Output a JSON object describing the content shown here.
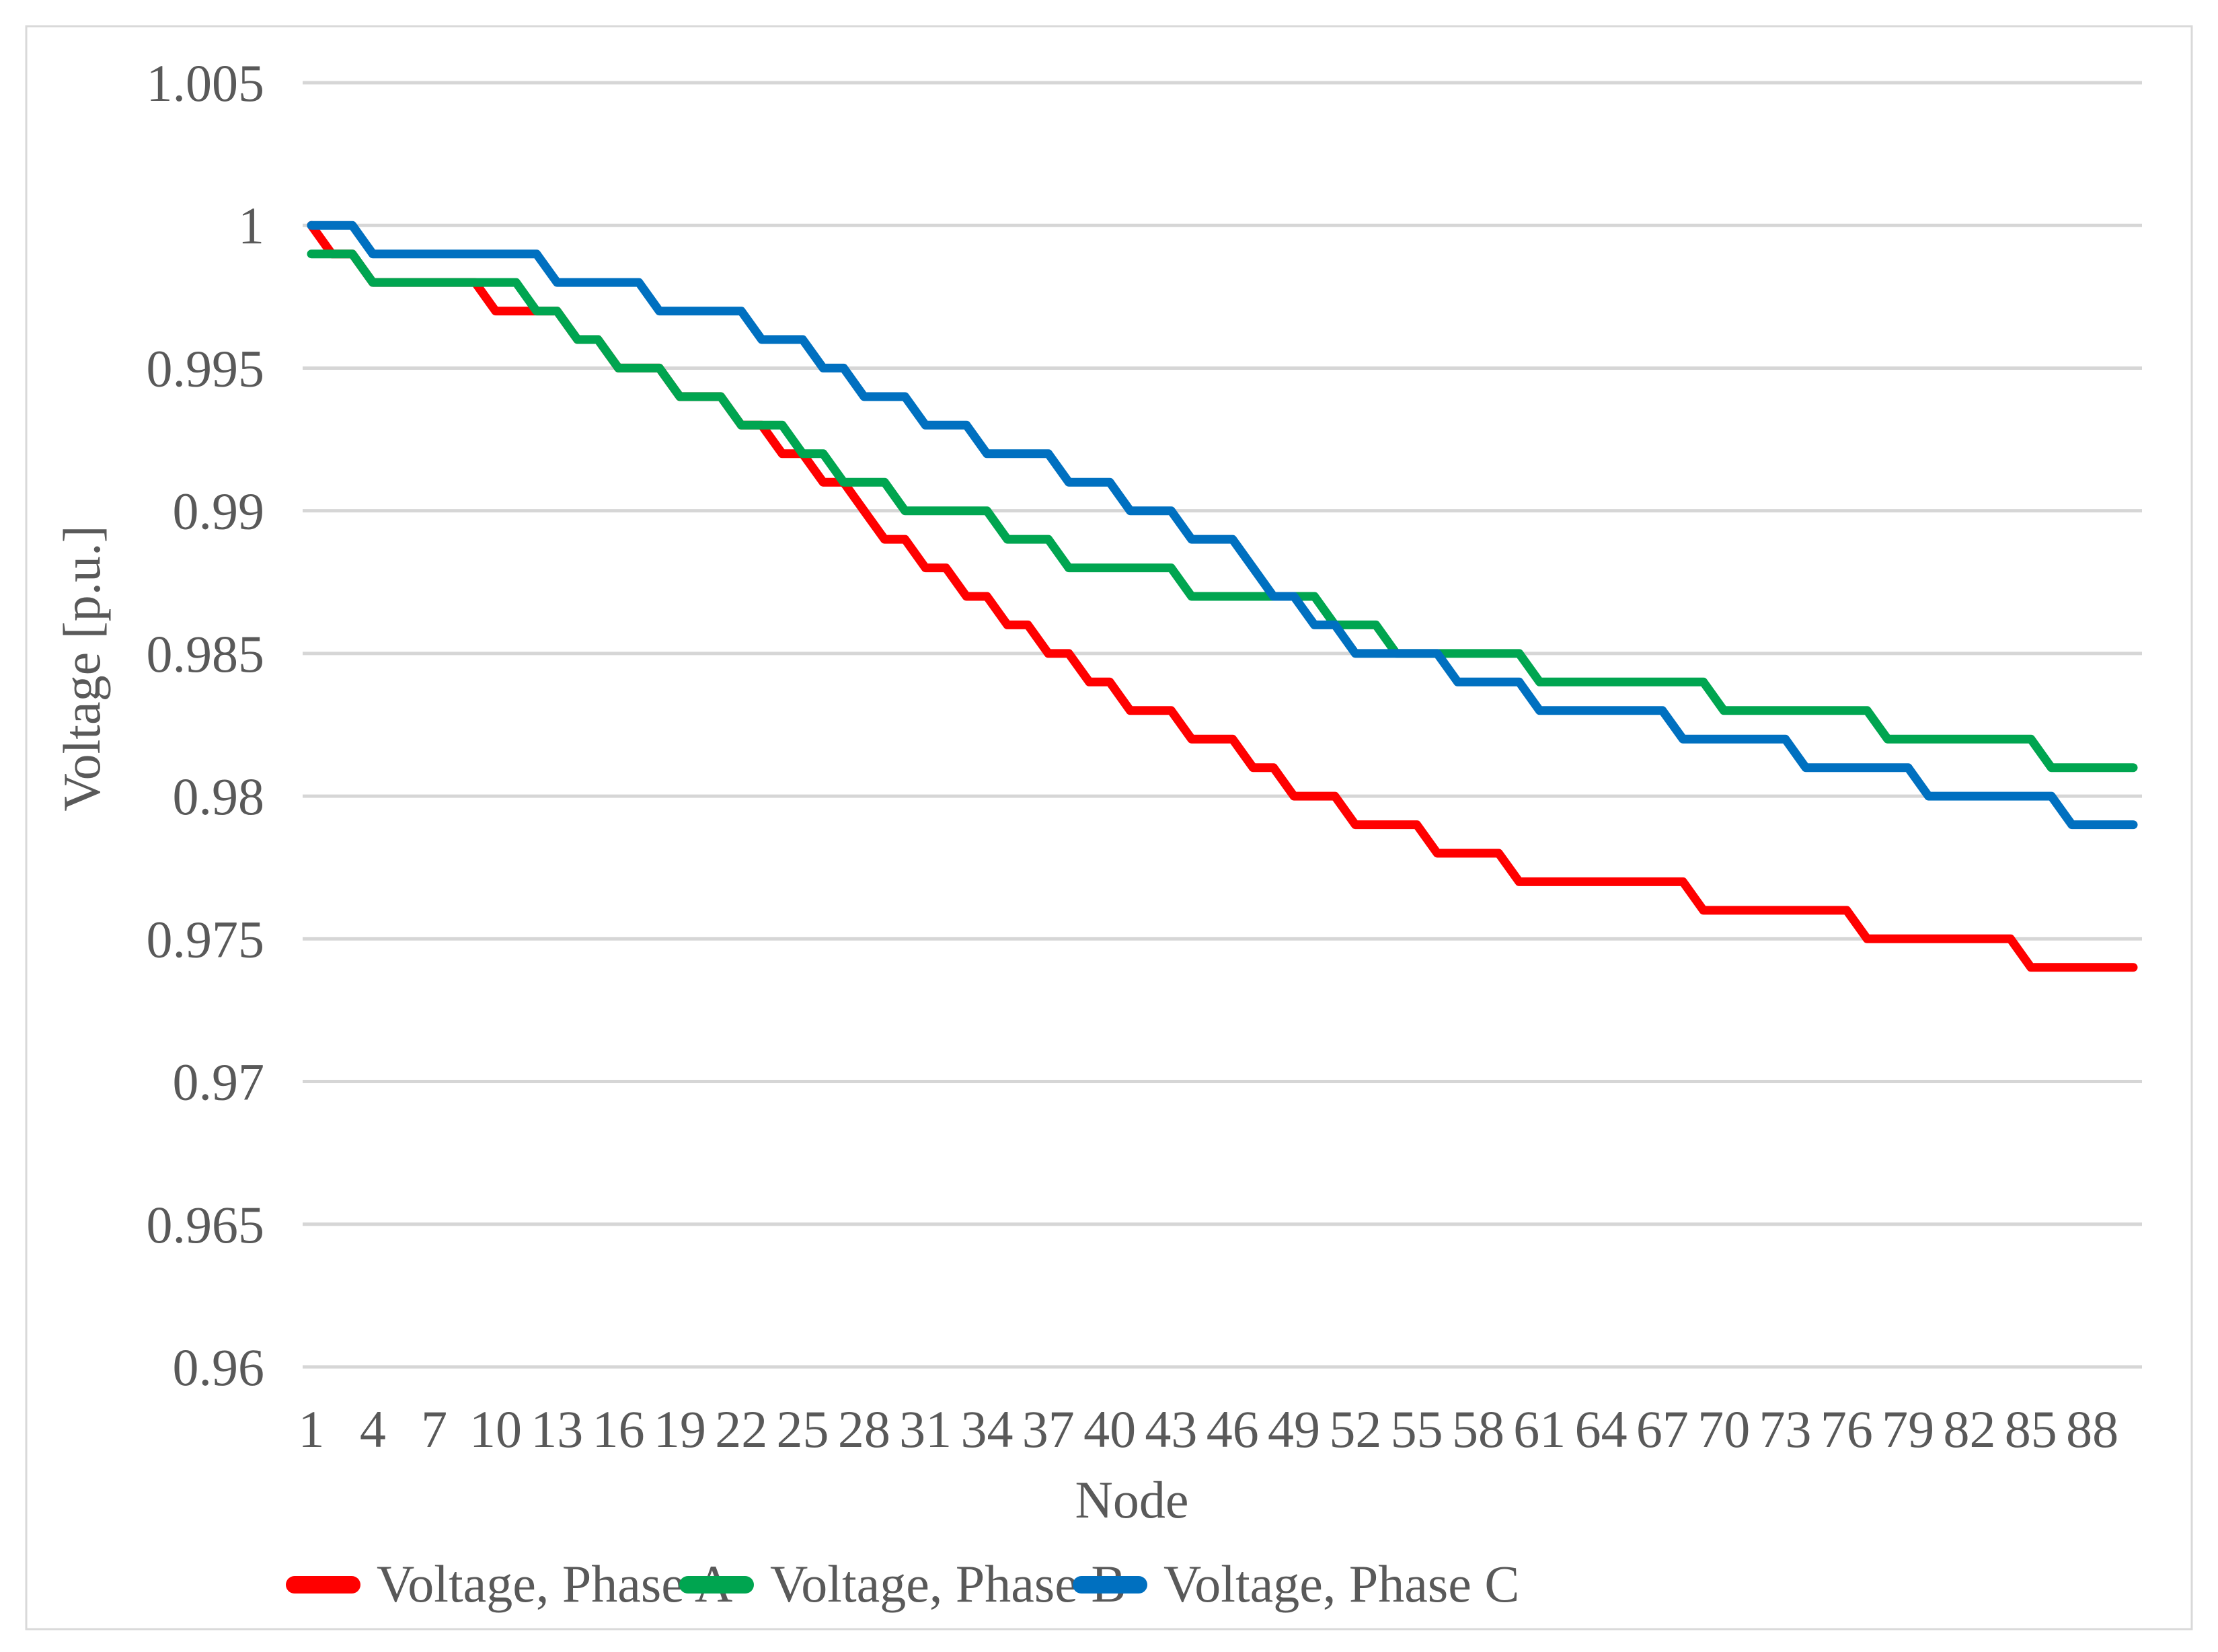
{
  "chart_data": {
    "type": "line",
    "title": "",
    "xlabel": "Node",
    "ylabel": "Voltage [p.u.]",
    "x_start": 1,
    "n_points": 90,
    "x_tick_labels": [
      "1",
      "4",
      "7",
      "10",
      "13",
      "16",
      "19",
      "22",
      "25",
      "28",
      "31",
      "34",
      "37",
      "40",
      "43",
      "46",
      "49",
      "52",
      "55",
      "58",
      "61",
      "64",
      "67",
      "70",
      "73",
      "76",
      "79",
      "82",
      "85",
      "88"
    ],
    "y_tick_labels": [
      "1.005",
      "1",
      "0.995",
      "0.99",
      "0.985",
      "0.98",
      "0.975",
      "0.97",
      "0.965",
      "0.96"
    ],
    "ylim": [
      0.96,
      1.005
    ],
    "y_gridline_step": 0.005,
    "grid": "horizontal",
    "legend_position": "bottom",
    "series": [
      {
        "name": "Voltage, Phase A",
        "color": "#FF0000",
        "values": [
          1,
          0.999,
          0.999,
          0.998,
          0.998,
          0.998,
          0.998,
          0.998,
          0.998,
          0.997,
          0.997,
          0.997,
          0.997,
          0.996,
          0.996,
          0.995,
          0.995,
          0.995,
          0.994,
          0.994,
          0.994,
          0.993,
          0.993,
          0.992,
          0.992,
          0.991,
          0.991,
          0.99,
          0.989,
          0.989,
          0.988,
          0.988,
          0.987,
          0.987,
          0.986,
          0.986,
          0.985,
          0.985,
          0.984,
          0.984,
          0.983,
          0.983,
          0.983,
          0.982,
          0.982,
          0.982,
          0.981,
          0.981,
          0.98,
          0.98,
          0.98,
          0.979,
          0.979,
          0.979,
          0.979,
          0.978,
          0.978,
          0.978,
          0.978,
          0.977,
          0.977,
          0.977,
          0.977,
          0.977,
          0.977,
          0.977,
          0.977,
          0.977,
          0.976,
          0.976,
          0.976,
          0.976,
          0.976,
          0.976,
          0.976,
          0.976,
          0.975,
          0.975,
          0.975,
          0.975,
          0.975,
          0.975,
          0.975,
          0.975,
          0.974,
          0.974,
          0.974,
          0.974,
          0.974,
          0.974
        ]
      },
      {
        "name": "Voltage, Phase B",
        "color": "#00A550",
        "values": [
          0.999,
          0.999,
          0.999,
          0.998,
          0.998,
          0.998,
          0.998,
          0.998,
          0.998,
          0.998,
          0.998,
          0.997,
          0.997,
          0.996,
          0.996,
          0.995,
          0.995,
          0.995,
          0.994,
          0.994,
          0.994,
          0.993,
          0.993,
          0.993,
          0.992,
          0.992,
          0.991,
          0.991,
          0.991,
          0.99,
          0.99,
          0.99,
          0.99,
          0.99,
          0.989,
          0.989,
          0.989,
          0.988,
          0.988,
          0.988,
          0.988,
          0.988,
          0.988,
          0.987,
          0.987,
          0.987,
          0.987,
          0.987,
          0.987,
          0.987,
          0.986,
          0.986,
          0.986,
          0.985,
          0.985,
          0.985,
          0.985,
          0.985,
          0.985,
          0.985,
          0.984,
          0.984,
          0.984,
          0.984,
          0.984,
          0.984,
          0.984,
          0.984,
          0.984,
          0.983,
          0.983,
          0.983,
          0.983,
          0.983,
          0.983,
          0.983,
          0.983,
          0.982,
          0.982,
          0.982,
          0.982,
          0.982,
          0.982,
          0.982,
          0.982,
          0.981,
          0.981,
          0.981,
          0.981,
          0.981
        ]
      },
      {
        "name": "Voltage, Phase C",
        "color": "#0070C0",
        "values": [
          1,
          1,
          1,
          0.999,
          0.999,
          0.999,
          0.999,
          0.999,
          0.999,
          0.999,
          0.999,
          0.999,
          0.998,
          0.998,
          0.998,
          0.998,
          0.998,
          0.997,
          0.997,
          0.997,
          0.997,
          0.997,
          0.996,
          0.996,
          0.996,
          0.995,
          0.995,
          0.994,
          0.994,
          0.994,
          0.993,
          0.993,
          0.993,
          0.992,
          0.992,
          0.992,
          0.992,
          0.991,
          0.991,
          0.991,
          0.99,
          0.99,
          0.99,
          0.989,
          0.989,
          0.989,
          0.988,
          0.987,
          0.987,
          0.986,
          0.986,
          0.985,
          0.985,
          0.985,
          0.985,
          0.985,
          0.984,
          0.984,
          0.984,
          0.984,
          0.983,
          0.983,
          0.983,
          0.983,
          0.983,
          0.983,
          0.983,
          0.982,
          0.982,
          0.982,
          0.982,
          0.982,
          0.982,
          0.981,
          0.981,
          0.981,
          0.981,
          0.981,
          0.981,
          0.98,
          0.98,
          0.98,
          0.98,
          0.98,
          0.98,
          0.98,
          0.979,
          0.979,
          0.979,
          0.979
        ]
      }
    ]
  },
  "colors": {
    "background": "#FFFFFF",
    "border": "#D9D9D9",
    "gridline": "#D6D6D6",
    "text": "#595959"
  }
}
